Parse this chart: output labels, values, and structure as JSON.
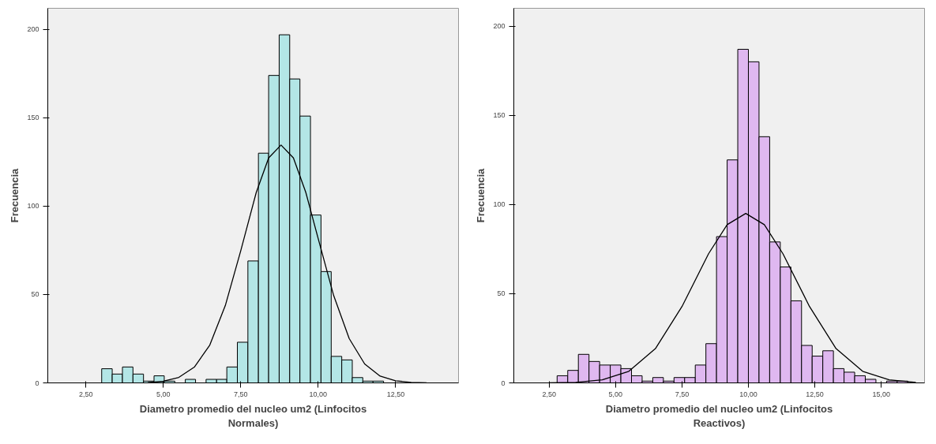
{
  "chart_data": [
    {
      "type": "histogram",
      "xlabel": "Diametro promedio del nucleo um2 (Linfocitos\nNormales)",
      "ylabel": "Frecuencia",
      "color": "#b3e6e6",
      "grid": false,
      "bins": [
        3.01,
        3.35,
        3.68,
        4.02,
        4.36,
        4.7,
        5.03,
        5.37,
        5.71,
        6.04,
        6.38,
        6.72,
        7.05,
        7.39,
        7.73,
        8.07,
        8.4,
        8.74,
        9.08,
        9.41,
        9.75,
        10.09,
        10.42,
        10.76,
        11.1,
        11.44,
        11.77,
        12.11
      ],
      "values": [
        8,
        5,
        9,
        5,
        1,
        4,
        1,
        null,
        2,
        null,
        2,
        2,
        9,
        23,
        69,
        130,
        174,
        197,
        172,
        151,
        95,
        63,
        15,
        13,
        3,
        1,
        1
      ],
      "series": [
        {
          "type": "line",
          "color": "#000000",
          "x": [
            4.5,
            5,
            5.5,
            6,
            6.5,
            7,
            7.5,
            8,
            8.4,
            8.8,
            9.2,
            9.6,
            10,
            10.5,
            11,
            11.5,
            12,
            12.5,
            13,
            13.5
          ],
          "values": [
            0.2,
            0.9,
            3.1,
            8.9,
            21.4,
            43.7,
            74.8,
            107.8,
            127.3,
            134.6,
            127.3,
            107.8,
            81.6,
            49.4,
            25.1,
            10.7,
            3.8,
            1.2,
            0.3,
            0.1
          ]
        }
      ],
      "xlim": [
        1.27,
        14.53
      ],
      "ylim": [
        0,
        212
      ],
      "xticks": [
        {
          "value": 2.5,
          "label": "2,50"
        },
        {
          "value": 5,
          "label": "5,00"
        },
        {
          "value": 7.5,
          "label": "7,50"
        },
        {
          "value": 10,
          "label": "10,00"
        },
        {
          "value": 12.5,
          "label": "12,50"
        }
      ],
      "yticks": [
        0,
        50,
        100,
        150,
        200
      ]
    },
    {
      "type": "histogram",
      "xlabel": "Diametro promedio del nucleo um2 (Linfocitos\nReactivos)",
      "ylabel": "Frecuencia",
      "color": "#dfb8f0",
      "grid": false,
      "bins": [
        2.8,
        3.2,
        3.6,
        4.0,
        4.4,
        4.8,
        5.2,
        5.6,
        6.0,
        6.4,
        6.8,
        7.2,
        7.6,
        8.0,
        8.4,
        8.8,
        9.2,
        9.6,
        10.0,
        10.4,
        10.8,
        11.2,
        11.6,
        12.0,
        12.4,
        12.8,
        13.2,
        13.6,
        14.0,
        14.4,
        14.8,
        15.2,
        15.6,
        16.0
      ],
      "values": [
        4,
        7,
        16,
        12,
        10,
        10,
        8,
        4,
        1,
        3,
        1,
        3,
        3,
        10,
        22,
        82,
        125,
        187,
        180,
        138,
        79,
        65,
        46,
        21,
        15,
        18,
        8,
        6,
        4,
        2,
        null,
        1,
        1
      ],
      "series": [
        {
          "type": "line",
          "color": "#000000",
          "x": [
            2.5,
            3.5,
            4.5,
            5.5,
            6.5,
            7.5,
            8.5,
            9.2,
            9.9,
            10.6,
            11.3,
            12.3,
            13.3,
            14.3,
            15.3,
            16.3
          ],
          "values": [
            0,
            0.3,
            1.7,
            6.5,
            19.2,
            42.8,
            72.4,
            88.7,
            95,
            88.7,
            72.4,
            42.8,
            19.2,
            6.5,
            1.7,
            0.3
          ]
        }
      ],
      "xlim": [
        1.17,
        16.63
      ],
      "ylim": [
        0,
        210
      ],
      "xticks": [
        {
          "value": 2.5,
          "label": "2,50"
        },
        {
          "value": 5,
          "label": "5,00"
        },
        {
          "value": 7.5,
          "label": "7,50"
        },
        {
          "value": 10,
          "label": "10,00"
        },
        {
          "value": 12.5,
          "label": "12,50"
        },
        {
          "value": 15,
          "label": "15,00"
        }
      ],
      "yticks": [
        0,
        50,
        100,
        150,
        200
      ]
    }
  ]
}
